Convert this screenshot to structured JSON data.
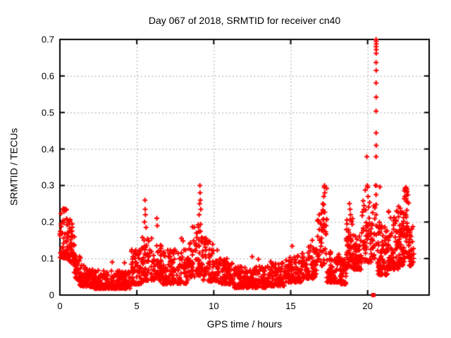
{
  "figure": {
    "title": "Day 067 of 2018, SRMTID for receiver cn40",
    "xlabel": "GPS time / hours",
    "ylabel": "SRMTID / TECUs"
  },
  "chart_data": {
    "type": "scatter",
    "title": "Day 067 of 2018, SRMTID for receiver cn40",
    "xlabel": "GPS time / hours",
    "ylabel": "SRMTID / TECUs",
    "xlim": [
      0,
      24
    ],
    "ylim": [
      0,
      0.7
    ],
    "xticks": [
      [
        0,
        "0"
      ],
      [
        5,
        "5"
      ],
      [
        10,
        "10"
      ],
      [
        15,
        "15"
      ],
      [
        20,
        "20"
      ]
    ],
    "yticks": [
      [
        0,
        "0"
      ],
      [
        0.1,
        "0.1"
      ],
      [
        0.2,
        "0.2"
      ],
      [
        0.3,
        "0.3"
      ],
      [
        0.4,
        "0.4"
      ],
      [
        0.5,
        "0.5"
      ],
      [
        0.6,
        "0.6"
      ],
      [
        0.7,
        "0.7"
      ]
    ],
    "grid": true,
    "legend": "none",
    "marker": {
      "shape": "plus",
      "size": 7,
      "color": "#ff0000"
    },
    "colors": {
      "marker": "#ff0000",
      "axis": "#000000",
      "grid": "#a8a8a8",
      "background": "#ffffff"
    },
    "series_name": "SRMTID",
    "band_format": "[x_start_h, x_end_h, n_points, y_lo_start, y_hi_start, y_lo_end, y_hi_end] — dense scatter envelope, points skewed toward y_lo",
    "bands": [
      [
        0.0,
        0.45,
        45,
        0.1,
        0.24
      ],
      [
        0.45,
        0.95,
        60,
        0.1,
        0.225,
        0.08,
        0.2
      ],
      [
        0.9,
        1.35,
        45,
        0.05,
        0.14,
        0.035,
        0.1
      ],
      [
        1.3,
        2.2,
        90,
        0.025,
        0.085,
        0.022,
        0.07
      ],
      [
        2.2,
        4.6,
        230,
        0.018,
        0.068
      ],
      [
        4.6,
        5.3,
        70,
        0.03,
        0.125
      ],
      [
        5.3,
        6.0,
        60,
        0.04,
        0.16
      ],
      [
        6.0,
        6.6,
        55,
        0.04,
        0.15
      ],
      [
        6.6,
        8.4,
        140,
        0.03,
        0.125
      ],
      [
        8.4,
        9.3,
        80,
        0.05,
        0.2
      ],
      [
        9.3,
        10.4,
        90,
        0.04,
        0.165,
        0.035,
        0.12
      ],
      [
        10.4,
        11.2,
        70,
        0.03,
        0.1
      ],
      [
        11.2,
        13.4,
        200,
        0.02,
        0.078
      ],
      [
        13.4,
        14.6,
        100,
        0.025,
        0.092
      ],
      [
        14.6,
        15.7,
        90,
        0.035,
        0.115
      ],
      [
        15.7,
        16.7,
        85,
        0.045,
        0.135
      ],
      [
        16.7,
        17.35,
        55,
        0.07,
        0.22,
        0.09,
        0.3
      ],
      [
        17.35,
        18.25,
        75,
        0.035,
        0.12
      ],
      [
        18.25,
        18.6,
        40,
        0.03,
        0.1
      ],
      [
        18.6,
        19.05,
        55,
        0.07,
        0.22
      ],
      [
        19.05,
        19.6,
        65,
        0.07,
        0.17
      ],
      [
        19.6,
        20.25,
        55,
        0.09,
        0.29
      ],
      [
        20.26,
        20.48,
        18,
        0.1,
        0.25
      ],
      [
        20.65,
        21.3,
        80,
        0.055,
        0.2
      ],
      [
        21.3,
        22.0,
        80,
        0.07,
        0.23
      ],
      [
        22.0,
        22.35,
        50,
        0.08,
        0.245
      ],
      [
        22.35,
        22.7,
        45,
        0.1,
        0.295
      ],
      [
        22.7,
        23.0,
        30,
        0.08,
        0.2
      ]
    ],
    "notable_points": [
      [
        3.4,
        0.09
      ],
      [
        4.2,
        0.088
      ],
      [
        5.5,
        0.2
      ],
      [
        5.53,
        0.26
      ],
      [
        5.54,
        0.235
      ],
      [
        5.56,
        0.22
      ],
      [
        5.6,
        0.185
      ],
      [
        6.3,
        0.21
      ],
      [
        6.33,
        0.19
      ],
      [
        7.9,
        0.155
      ],
      [
        8.0,
        0.148
      ],
      [
        9.05,
        0.22
      ],
      [
        9.08,
        0.25
      ],
      [
        9.1,
        0.3
      ],
      [
        9.11,
        0.28
      ],
      [
        9.13,
        0.26
      ],
      [
        9.16,
        0.235
      ],
      [
        12.5,
        0.105
      ],
      [
        12.9,
        0.098
      ],
      [
        15.1,
        0.134
      ],
      [
        16.4,
        0.15
      ],
      [
        17.15,
        0.27
      ],
      [
        17.18,
        0.295
      ],
      [
        17.2,
        0.3
      ],
      [
        17.22,
        0.28
      ],
      [
        18.82,
        0.25
      ],
      [
        18.86,
        0.235
      ],
      [
        19.95,
        0.379
      ],
      [
        19.98,
        0.3
      ],
      [
        20.0,
        0.295
      ],
      [
        20.03,
        0.27
      ],
      [
        20.52,
        0.3
      ],
      [
        20.55,
        0.7
      ],
      [
        20.555,
        0.695
      ],
      [
        20.56,
        0.688
      ],
      [
        20.55,
        0.68
      ],
      [
        20.56,
        0.672
      ],
      [
        20.555,
        0.662
      ],
      [
        20.55,
        0.637
      ],
      [
        20.558,
        0.615
      ],
      [
        20.55,
        0.581
      ],
      [
        20.556,
        0.542
      ],
      [
        20.55,
        0.504
      ],
      [
        20.553,
        0.444
      ],
      [
        20.556,
        0.41
      ],
      [
        20.55,
        0.379
      ],
      [
        20.553,
        0.3
      ],
      [
        20.55,
        0.275
      ],
      [
        20.556,
        0.248
      ],
      [
        20.55,
        0.22
      ],
      [
        20.553,
        0.19
      ],
      [
        20.556,
        0.165
      ],
      [
        20.55,
        0.14
      ],
      [
        20.8,
        0.296
      ],
      [
        22.42,
        0.27
      ],
      [
        22.46,
        0.29
      ],
      [
        22.5,
        0.295
      ],
      [
        22.53,
        0.275
      ],
      [
        22.57,
        0.255
      ]
    ],
    "square_point": [
      20.37,
      0.0
    ]
  }
}
